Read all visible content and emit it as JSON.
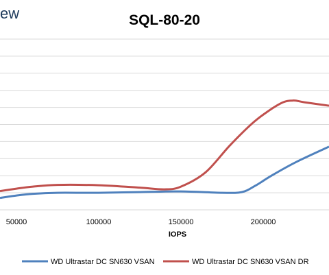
{
  "header": {
    "logo_text": "ew"
  },
  "chart_data": {
    "type": "line",
    "title": "SQL-80-20",
    "xlabel": "IOPS",
    "ylabel": "",
    "xlim": [
      40000,
      240000
    ],
    "ylim": [
      0,
      5
    ],
    "x_ticks": [
      50000,
      100000,
      150000,
      200000
    ],
    "x_tick_labels": [
      "50000",
      "100000",
      "150000",
      "200000"
    ],
    "y_gridlines": [
      0,
      0.5,
      1,
      1.5,
      2,
      2.5,
      3,
      3.5,
      4,
      4.5,
      5
    ],
    "grid": true,
    "legend": "bottom",
    "series": [
      {
        "name": "WD Ultrastar DC SN630 VSAN",
        "color": "#4f81bd",
        "x": [
          40000,
          50000,
          60000,
          75000,
          100000,
          125000,
          150000,
          175000,
          187000,
          195000,
          205000,
          220000,
          240000
        ],
        "y": [
          0.35,
          0.42,
          0.47,
          0.5,
          0.5,
          0.52,
          0.54,
          0.5,
          0.52,
          0.7,
          1.0,
          1.4,
          1.85
        ]
      },
      {
        "name": "WD Ultrastar DC SN630 VSAN DR",
        "color": "#c0504d",
        "x": [
          40000,
          50000,
          60000,
          75000,
          100000,
          125000,
          140000,
          150000,
          165000,
          180000,
          195000,
          210000,
          218000,
          225000,
          240000
        ],
        "y": [
          0.55,
          0.62,
          0.68,
          0.73,
          0.72,
          0.65,
          0.6,
          0.68,
          1.1,
          1.9,
          2.6,
          3.1,
          3.2,
          3.15,
          3.05
        ]
      }
    ]
  }
}
